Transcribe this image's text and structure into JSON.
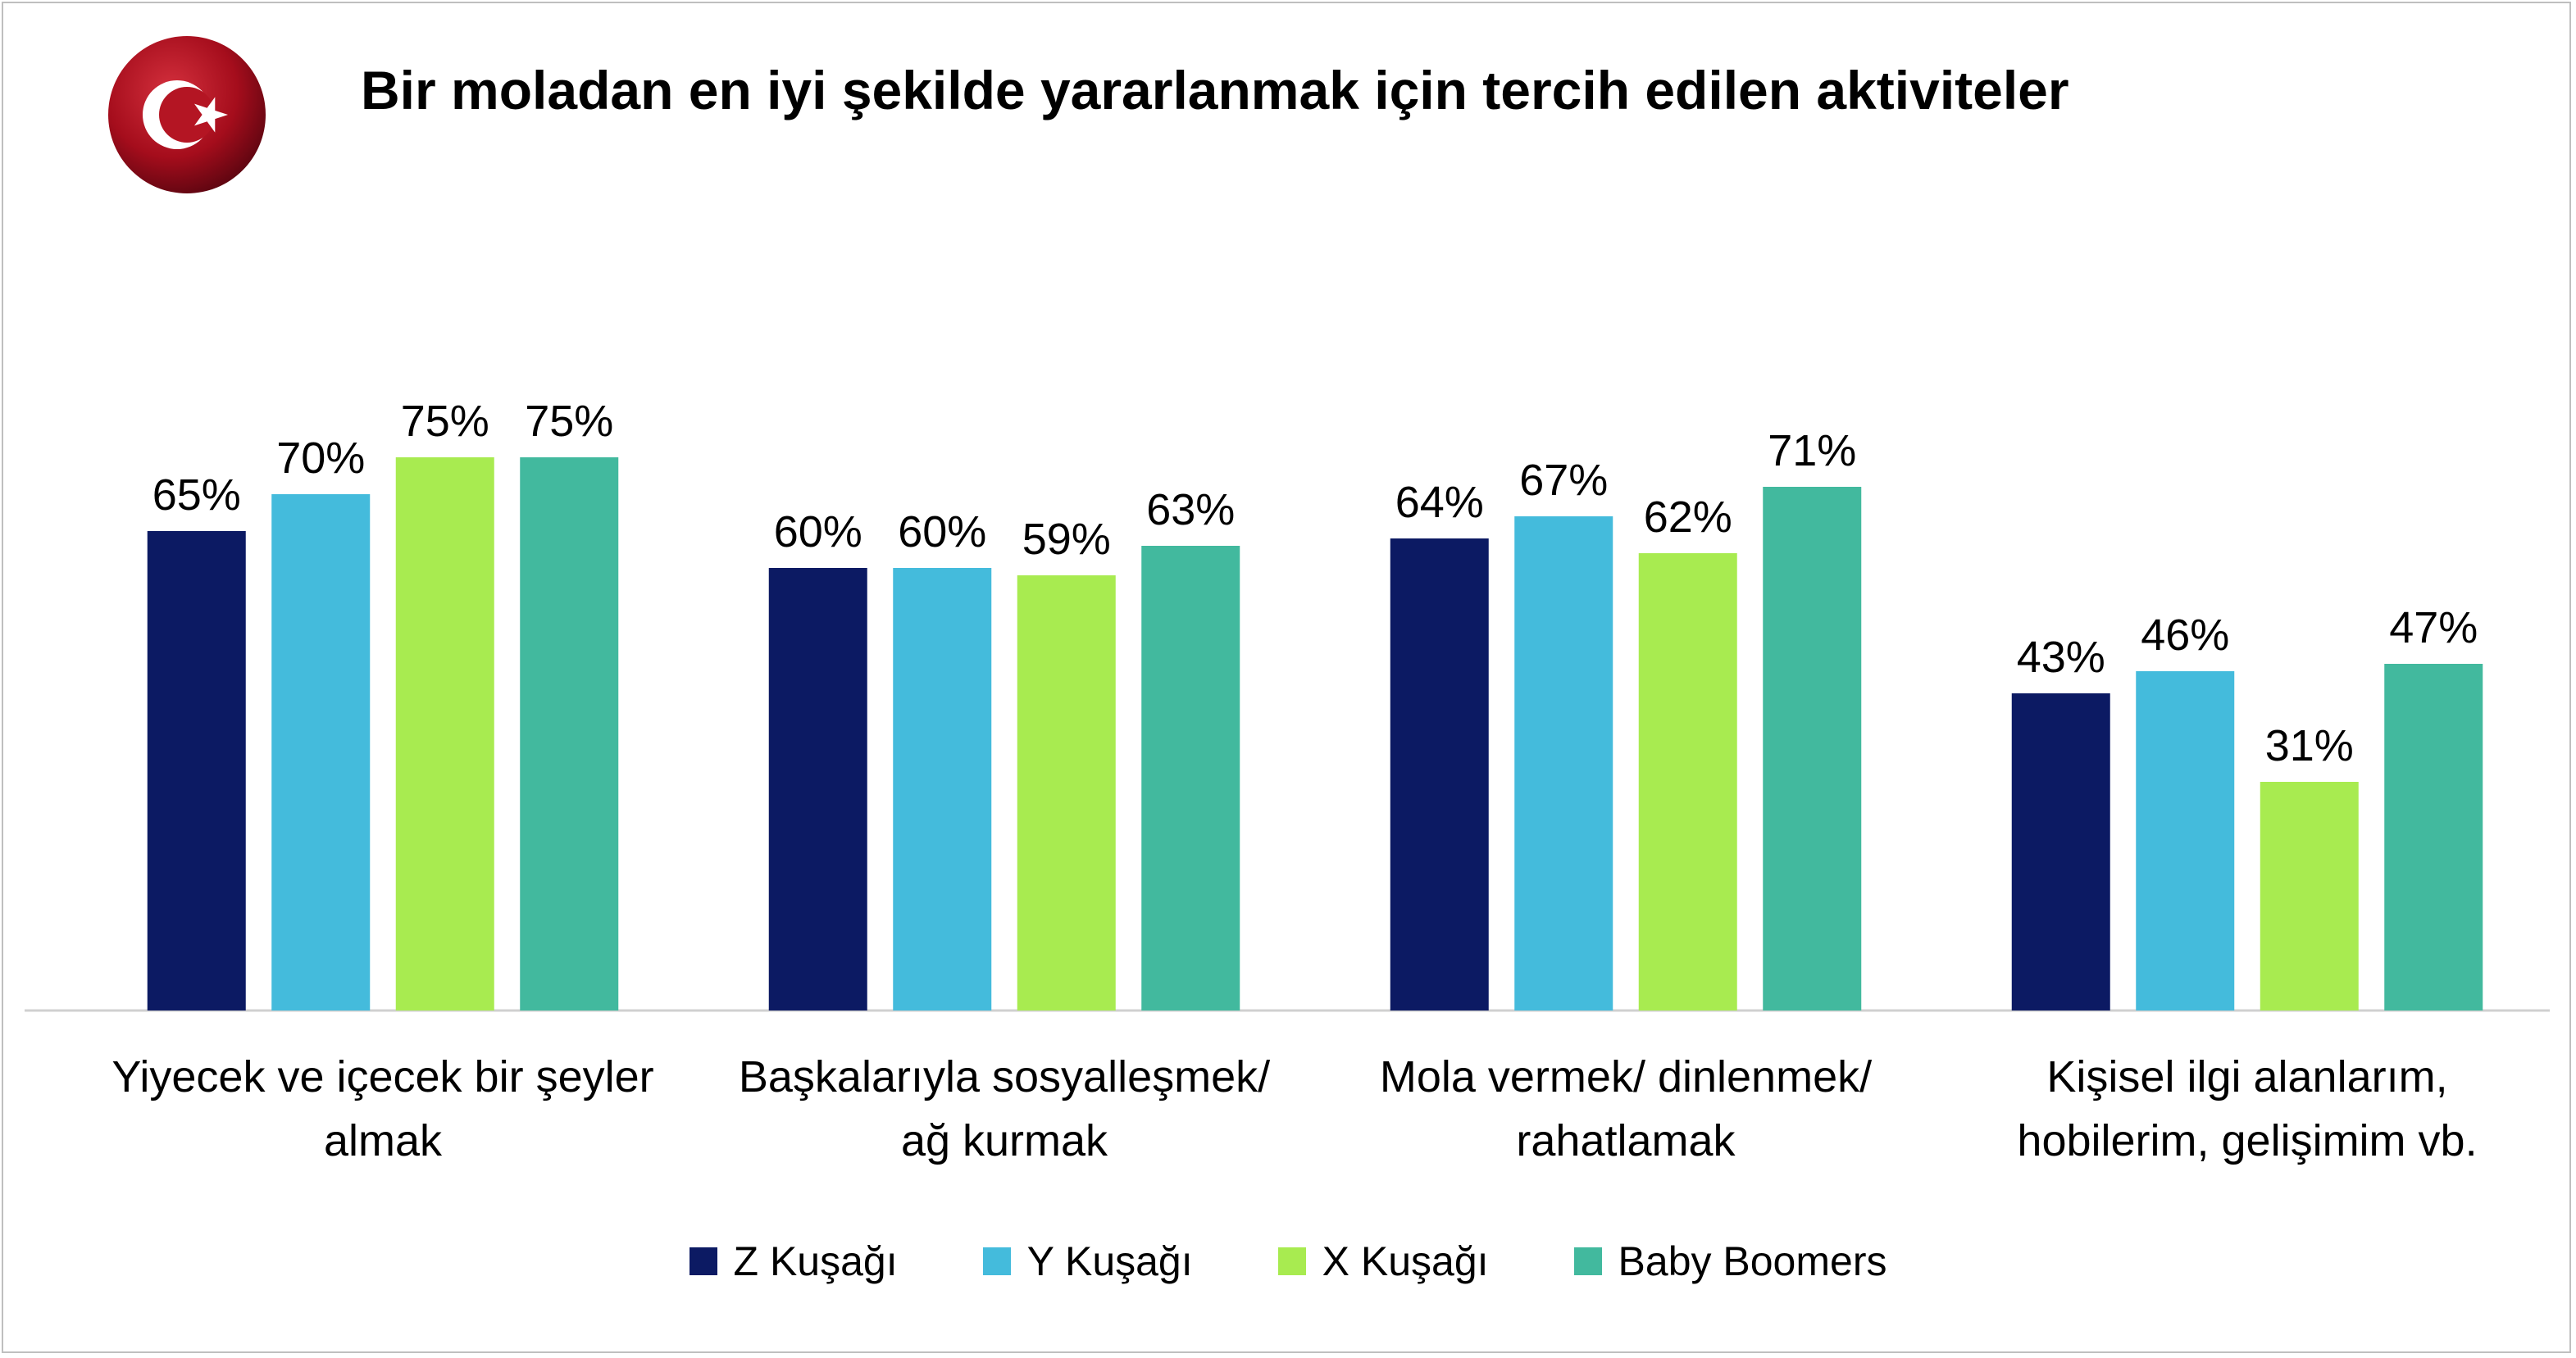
{
  "header": {
    "title": "Bir moladan en iyi şekilde yararlanmak için tercih edilen aktiviteler",
    "emblem": "turkish-flag-emblem"
  },
  "colors": {
    "z": "#0c1a63",
    "y": "#44bbdc",
    "x": "#a8eb50",
    "bb": "#42b99e",
    "flag_red": "#a50d1c"
  },
  "chart_data": {
    "type": "bar",
    "title": "Bir moladan en iyi şekilde yararlanmak için tercih edilen aktiviteler",
    "categories": [
      [
        "Yiyecek ve içecek bir şeyler",
        "almak"
      ],
      [
        "Başkalarıyla sosyalleşmek/",
        "ağ kurmak"
      ],
      [
        "Mola vermek/ dinlenmek/",
        "rahatlamak"
      ],
      [
        "Kişisel ilgi alanlarım,",
        "hobilerim, gelişimim vb."
      ]
    ],
    "series": [
      {
        "name": "Z Kuşağı",
        "color": "#0c1a63",
        "values": [
          65,
          60,
          64,
          43
        ],
        "labels": [
          "65%",
          "60%",
          "64%",
          "43%"
        ]
      },
      {
        "name": "Y Kuşağı",
        "color": "#44bbdc",
        "values": [
          70,
          60,
          67,
          46
        ],
        "labels": [
          "70%",
          "60%",
          "67%",
          "46%"
        ]
      },
      {
        "name": "X Kuşağı",
        "color": "#a8eb50",
        "values": [
          75,
          59,
          62,
          31
        ],
        "labels": [
          "75%",
          "59%",
          "62%",
          "31%"
        ]
      },
      {
        "name": "Baby Boomers",
        "color": "#42b99e",
        "values": [
          75,
          63,
          71,
          47
        ],
        "labels": [
          "75%",
          "63%",
          "71%",
          "47%"
        ]
      }
    ],
    "xlabel": "",
    "ylabel": "",
    "ylim": [
      0,
      100
    ],
    "grid": false,
    "legend": "bottom"
  }
}
